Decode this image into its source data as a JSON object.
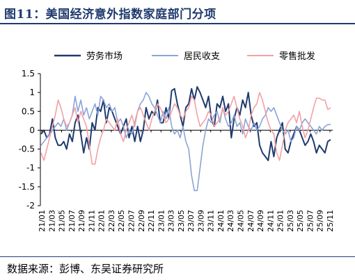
{
  "title": "图11：美国经济意外指数家庭部门分项",
  "source": "数据来源：彭博、东吴证券研究所",
  "chart_data": {
    "type": "line",
    "title": "",
    "xlabel": "",
    "ylabel": "",
    "ylim": [
      -2,
      1.5
    ],
    "yticks": [
      -2,
      -1.5,
      -1,
      -0.5,
      0,
      0.5,
      1,
      1.5
    ],
    "yticklabels": [
      "-2",
      "-1.5",
      "-1",
      "-0.5",
      "0",
      "0.5",
      "1",
      "1.5"
    ],
    "xticklabels": [
      "21/01",
      "21/03",
      "21/05",
      "21/07",
      "21/09",
      "21/11",
      "22/01",
      "22/03",
      "22/05",
      "22/07",
      "22/09",
      "22/11",
      "23/01",
      "23/03",
      "23/05",
      "23/07",
      "23/09",
      "23/11",
      "24/01",
      "24/03",
      "24/05",
      "24/07",
      "24/09",
      "24/11",
      "25/01",
      "25/03",
      "25/05",
      "25/07",
      "25/09",
      "25/11"
    ],
    "legend_position": "top",
    "grid": false,
    "series": [
      {
        "name": "劳务市场",
        "color": "#1f3a6e",
        "values": [
          -0.1,
          0.0,
          -0.2,
          -0.1,
          0.3,
          -0.2,
          -0.4,
          -0.4,
          -0.3,
          -0.5,
          -0.1,
          -0.3,
          0.2,
          0.4,
          -0.1,
          -0.6,
          -0.2,
          -0.5,
          0.2,
          0.0,
          0.6,
          0.5,
          0.8,
          0.2,
          0.6,
          0.5,
          0.3,
          0.1,
          -0.1,
          0.1,
          0.3,
          -0.2,
          0.1,
          -0.3,
          0.1,
          -0.3,
          0.0,
          0.6,
          0.3,
          0.5,
          0.4,
          0.8,
          0.2,
          0.2,
          0.6,
          0.3,
          1.05,
          1.1,
          0.7,
          0.4,
          0.1,
          0.6,
          0.7,
          1.1,
          0.8,
          1.15,
          1.0,
          0.8,
          0.6,
          0.9,
          0.3,
          0.1,
          0.7,
          0.6,
          0.9,
          0.5,
          0.7,
          -0.2,
          0.3,
          0.6,
          0.4,
          0.8,
          0.6,
          1.0,
          0.4,
          0.1,
          0.2,
          -0.4,
          -0.6,
          -0.7,
          -0.8,
          -0.3,
          -0.7,
          -0.2,
          0.0,
          0.2,
          -0.5,
          -0.6,
          -0.3,
          -0.1,
          0.1,
          0.0,
          -0.2,
          -0.4,
          -0.3,
          -0.1,
          -0.3,
          -0.6,
          -0.4,
          -0.5,
          -0.6,
          -0.3,
          -0.25
        ]
      },
      {
        "name": "居民收支",
        "color": "#8aa4d6",
        "values": [
          -0.4,
          -0.3,
          -0.2,
          -0.1,
          0.0,
          0.1,
          0.2,
          0.1,
          0.3,
          0.0,
          0.2,
          0.4,
          0.9,
          0.5,
          0.8,
          0.4,
          0.6,
          0.3,
          0.5,
          0.7,
          0.4,
          0.9,
          0.8,
          0.6,
          0.7,
          0.5,
          0.6,
          0.2,
          0.3,
          0.1,
          -0.2,
          0.0,
          -0.1,
          0.2,
          0.5,
          0.7,
          0.8,
          1.0,
          0.9,
          0.7,
          0.6,
          0.4,
          0.2,
          0.5,
          0.3,
          0.6,
          0.1,
          -0.1,
          0.0,
          -0.2,
          0.1,
          -0.3,
          -0.5,
          -1.2,
          -1.6,
          -1.6,
          -1.0,
          -0.4,
          0.0,
          0.3,
          0.2,
          0.4,
          0.5,
          0.2,
          0.6,
          0.3,
          0.1,
          0.2,
          0.4,
          0.1,
          0.2,
          -0.1,
          0.3,
          0.1,
          0.0,
          0.2,
          0.0,
          0.1,
          0.3,
          0.4,
          0.6,
          0.5,
          0.6,
          0.4,
          0.2,
          0.0,
          -0.1,
          0.0,
          -0.3,
          -0.2,
          0.1,
          0.0,
          0.2,
          0.3,
          0.2,
          0.1,
          0.0,
          -0.1,
          0.1,
          0.0,
          0.1,
          0.15,
          0.15
        ]
      },
      {
        "name": "零售批发",
        "color": "#f4a0a4",
        "values": [
          -0.6,
          -0.8,
          -0.5,
          -0.2,
          0.1,
          0.4,
          0.8,
          0.6,
          0.3,
          0.1,
          0.2,
          0.4,
          0.6,
          0.2,
          0.5,
          0.3,
          0.1,
          -0.4,
          -0.9,
          -0.9,
          -0.5,
          -0.2,
          0.0,
          0.3,
          0.2,
          0.1,
          0.0,
          0.3,
          -0.1,
          -0.3,
          0.0,
          0.2,
          0.4,
          0.1,
          0.5,
          0.6,
          0.4,
          0.2,
          0.0,
          0.3,
          0.5,
          0.7,
          0.6,
          0.4,
          0.2,
          0.3,
          0.5,
          0.7,
          0.6,
          0.4,
          0.3,
          0.5,
          0.6,
          0.9,
          0.8,
          0.4,
          0.1,
          0.2,
          0.3,
          0.5,
          0.4,
          0.1,
          0.2,
          0.3,
          0.6,
          0.4,
          0.5,
          0.7,
          0.9,
          0.6,
          0.3,
          0.1,
          -0.2,
          0.0,
          0.4,
          0.6,
          0.7,
          1.0,
          0.8,
          0.5,
          0.2,
          0.0,
          -0.1,
          -0.6,
          -0.8,
          -0.4,
          0.0,
          0.2,
          0.3,
          0.4,
          0.2,
          0.5,
          0.1,
          -0.2,
          0.0,
          0.3,
          0.6,
          0.85,
          0.85,
          0.8,
          0.8,
          0.55,
          0.6
        ]
      }
    ]
  }
}
